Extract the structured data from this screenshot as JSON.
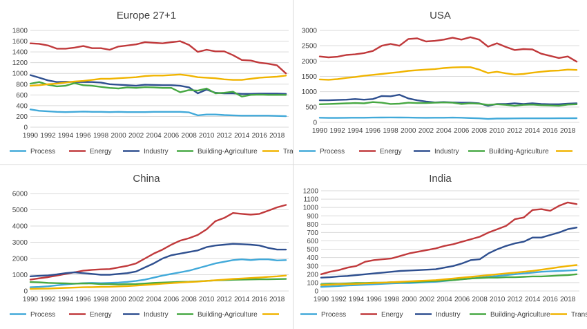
{
  "chart_data": [
    {
      "type": "line",
      "title": "Europe 27+1",
      "x": [
        1990,
        1991,
        1992,
        1993,
        1994,
        1995,
        1996,
        1997,
        1998,
        1999,
        2000,
        2001,
        2002,
        2003,
        2004,
        2005,
        2006,
        2007,
        2008,
        2009,
        2010,
        2011,
        2012,
        2013,
        2014,
        2015,
        2016,
        2017,
        2018,
        2019
      ],
      "xticks": [
        "1990",
        "1992",
        "1994",
        "1996",
        "1998",
        "2000",
        "2002",
        "2004",
        "2006",
        "2008",
        "2010",
        "2012",
        "2014",
        "2016",
        "2018"
      ],
      "ylim": [
        0,
        1800
      ],
      "yticks": [
        "0",
        "200",
        "400",
        "600",
        "800",
        "1000",
        "1200",
        "1400",
        "1600",
        "1800"
      ],
      "series": [
        {
          "name": "Process",
          "color": "#41a9d9",
          "values": [
            330,
            305,
            295,
            285,
            280,
            285,
            290,
            285,
            285,
            280,
            285,
            280,
            280,
            280,
            285,
            285,
            285,
            285,
            275,
            220,
            235,
            235,
            225,
            220,
            215,
            215,
            215,
            215,
            210,
            205
          ]
        },
        {
          "name": "Energy",
          "color": "#c0393b",
          "values": [
            1560,
            1550,
            1520,
            1460,
            1460,
            1480,
            1510,
            1470,
            1470,
            1440,
            1500,
            1520,
            1540,
            1580,
            1570,
            1560,
            1580,
            1600,
            1530,
            1400,
            1440,
            1410,
            1410,
            1340,
            1250,
            1240,
            1200,
            1180,
            1150,
            1000
          ]
        },
        {
          "name": "Industry",
          "color": "#2e4f8f",
          "values": [
            970,
            920,
            870,
            840,
            845,
            840,
            840,
            840,
            830,
            800,
            790,
            780,
            770,
            790,
            785,
            780,
            780,
            770,
            740,
            630,
            700,
            640,
            630,
            630,
            620,
            620,
            625,
            625,
            625,
            620
          ]
        },
        {
          "name": "Building-Agriculture",
          "color": "#47a843",
          "values": [
            810,
            840,
            790,
            760,
            770,
            820,
            780,
            770,
            750,
            730,
            720,
            740,
            730,
            745,
            740,
            730,
            730,
            650,
            690,
            680,
            720,
            630,
            640,
            660,
            570,
            600,
            605,
            600,
            600,
            600
          ]
        },
        {
          "name": "Transport",
          "color": "#f0b400",
          "values": [
            770,
            780,
            800,
            810,
            830,
            850,
            860,
            880,
            900,
            900,
            910,
            920,
            930,
            950,
            960,
            960,
            970,
            980,
            960,
            930,
            920,
            910,
            890,
            880,
            880,
            900,
            920,
            930,
            940,
            960
          ]
        }
      ],
      "legend": [
        "Process",
        "Energy",
        "Industry",
        "Building-Agriculture",
        "Transport"
      ]
    },
    {
      "type": "line",
      "title": "USA",
      "x": [
        1990,
        1991,
        1992,
        1993,
        1994,
        1995,
        1996,
        1997,
        1998,
        1999,
        2000,
        2001,
        2002,
        2003,
        2004,
        2005,
        2006,
        2007,
        2008,
        2009,
        2010,
        2011,
        2012,
        2013,
        2014,
        2015,
        2016,
        2017,
        2018,
        2019
      ],
      "xticks": [
        "1990",
        "1992",
        "1994",
        "1996",
        "1998",
        "2000",
        "2002",
        "2004",
        "2006",
        "2008",
        "2010",
        "2012",
        "2014",
        "2016",
        "2018"
      ],
      "ylim": [
        0,
        3000
      ],
      "yticks": [
        "0",
        "500",
        "1000",
        "1500",
        "2000",
        "2500",
        "3000"
      ],
      "series": [
        {
          "name": "Process",
          "color": "#41a9d9",
          "values": [
            150,
            145,
            145,
            148,
            150,
            152,
            155,
            158,
            160,
            158,
            155,
            150,
            148,
            150,
            152,
            155,
            150,
            140,
            130,
            110,
            125,
            125,
            128,
            130,
            130,
            130,
            130,
            132,
            133,
            135
          ]
        },
        {
          "name": "Energy",
          "color": "#c0393b",
          "values": [
            2150,
            2120,
            2140,
            2200,
            2220,
            2260,
            2330,
            2500,
            2560,
            2500,
            2720,
            2740,
            2640,
            2660,
            2700,
            2760,
            2700,
            2780,
            2700,
            2470,
            2580,
            2460,
            2360,
            2390,
            2380,
            2240,
            2170,
            2100,
            2150,
            1980
          ]
        },
        {
          "name": "Industry",
          "color": "#2e4f8f",
          "values": [
            720,
            720,
            730,
            740,
            760,
            740,
            760,
            860,
            850,
            900,
            780,
            720,
            680,
            650,
            660,
            650,
            640,
            640,
            620,
            540,
            600,
            600,
            620,
            600,
            620,
            600,
            590,
            590,
            610,
            620
          ]
        },
        {
          "name": "Building-Agriculture",
          "color": "#47a843",
          "values": [
            590,
            600,
            610,
            620,
            630,
            620,
            660,
            640,
            600,
            610,
            640,
            630,
            630,
            640,
            650,
            640,
            600,
            620,
            610,
            570,
            590,
            570,
            540,
            570,
            580,
            560,
            550,
            540,
            580,
            590
          ]
        },
        {
          "name": "",
          "color": "#f0b400",
          "values": [
            1400,
            1390,
            1410,
            1450,
            1480,
            1520,
            1550,
            1580,
            1610,
            1640,
            1680,
            1700,
            1720,
            1740,
            1770,
            1790,
            1800,
            1800,
            1720,
            1610,
            1650,
            1600,
            1560,
            1580,
            1620,
            1650,
            1680,
            1690,
            1720,
            1710
          ]
        }
      ],
      "legend": [
        "Process",
        "Energy",
        "Industry",
        "Building-Agriculture",
        ""
      ]
    },
    {
      "type": "line",
      "title": "China",
      "x": [
        1990,
        1991,
        1992,
        1993,
        1994,
        1995,
        1996,
        1997,
        1998,
        1999,
        2000,
        2001,
        2002,
        2003,
        2004,
        2005,
        2006,
        2007,
        2008,
        2009,
        2010,
        2011,
        2012,
        2013,
        2014,
        2015,
        2016,
        2017,
        2018,
        2019
      ],
      "xticks": [
        "1990",
        "1992",
        "1994",
        "1996",
        "1998",
        "2000",
        "2002",
        "2004",
        "2006",
        "2008",
        "2010",
        "2012",
        "2014",
        "2016",
        "2018"
      ],
      "ylim": [
        0,
        6000
      ],
      "yticks": [
        "0",
        "1000",
        "2000",
        "3000",
        "4000",
        "5000",
        "6000"
      ],
      "series": [
        {
          "name": "Process",
          "color": "#41a9d9",
          "values": [
            230,
            250,
            290,
            350,
            400,
            450,
            480,
            500,
            480,
            500,
            520,
            560,
            620,
            700,
            820,
            950,
            1050,
            1150,
            1250,
            1400,
            1550,
            1700,
            1800,
            1900,
            1950,
            1900,
            1950,
            1950,
            1880,
            1900
          ]
        },
        {
          "name": "Energy",
          "color": "#c0393b",
          "values": [
            700,
            780,
            850,
            950,
            1050,
            1150,
            1250,
            1300,
            1330,
            1350,
            1450,
            1550,
            1700,
            2000,
            2300,
            2550,
            2850,
            3100,
            3250,
            3450,
            3800,
            4300,
            4500,
            4800,
            4750,
            4700,
            4750,
            4950,
            5150,
            5300
          ]
        },
        {
          "name": "Industry",
          "color": "#2e4f8f",
          "values": [
            900,
            930,
            960,
            1020,
            1100,
            1150,
            1100,
            1050,
            1000,
            1000,
            1050,
            1100,
            1200,
            1450,
            1700,
            2000,
            2200,
            2300,
            2400,
            2500,
            2700,
            2800,
            2850,
            2900,
            2880,
            2850,
            2800,
            2650,
            2550,
            2550
          ]
        },
        {
          "name": "Building-Agriculture",
          "color": "#47a843",
          "values": [
            550,
            530,
            500,
            480,
            470,
            450,
            470,
            460,
            420,
            420,
            410,
            420,
            430,
            460,
            500,
            520,
            540,
            560,
            570,
            590,
            620,
            650,
            670,
            690,
            700,
            710,
            720,
            720,
            730,
            740
          ]
        },
        {
          "name": "",
          "color": "#f0b400",
          "values": [
            130,
            140,
            150,
            170,
            190,
            210,
            230,
            240,
            250,
            260,
            280,
            300,
            330,
            370,
            410,
            450,
            480,
            520,
            550,
            580,
            620,
            660,
            700,
            740,
            770,
            800,
            830,
            870,
            900,
            950
          ]
        }
      ],
      "legend": [
        "Process",
        "Energy",
        "Industry",
        "Building-Agriculture",
        ""
      ]
    },
    {
      "type": "line",
      "title": "India",
      "x": [
        1990,
        1991,
        1992,
        1993,
        1994,
        1995,
        1996,
        1997,
        1998,
        1999,
        2000,
        2001,
        2002,
        2003,
        2004,
        2005,
        2006,
        2007,
        2008,
        2009,
        2010,
        2011,
        2012,
        2013,
        2014,
        2015,
        2016,
        2017,
        2018,
        2019
      ],
      "xticks": [
        "1990",
        "1992",
        "1994",
        "1996",
        "1998",
        "2000",
        "2002",
        "2004",
        "2006",
        "2008",
        "2010",
        "2012",
        "2014",
        "2016",
        "2018"
      ],
      "ylim": [
        0,
        1200
      ],
      "yticks": [
        "0",
        "100",
        "200",
        "300",
        "400",
        "500",
        "600",
        "700",
        "800",
        "900",
        "1000",
        "1100",
        "1200"
      ],
      "series": [
        {
          "name": "Process",
          "color": "#41a9d9",
          "values": [
            50,
            55,
            60,
            65,
            70,
            75,
            80,
            85,
            90,
            95,
            95,
            100,
            105,
            110,
            120,
            130,
            140,
            150,
            160,
            170,
            180,
            190,
            200,
            210,
            220,
            230,
            235,
            240,
            245,
            250
          ]
        },
        {
          "name": "Energy",
          "color": "#c0393b",
          "values": [
            200,
            230,
            250,
            280,
            300,
            350,
            370,
            380,
            390,
            420,
            450,
            470,
            490,
            510,
            540,
            560,
            590,
            620,
            650,
            700,
            740,
            780,
            860,
            880,
            970,
            980,
            960,
            1020,
            1060,
            1040
          ]
        },
        {
          "name": "Industry",
          "color": "#2e4f8f",
          "values": [
            160,
            165,
            175,
            180,
            190,
            200,
            210,
            220,
            230,
            240,
            245,
            250,
            255,
            260,
            280,
            300,
            330,
            370,
            380,
            450,
            500,
            540,
            570,
            590,
            640,
            640,
            670,
            700,
            740,
            760
          ]
        },
        {
          "name": "Building-Agriculture",
          "color": "#47a843",
          "values": [
            80,
            85,
            85,
            90,
            95,
            95,
            100,
            100,
            105,
            105,
            110,
            110,
            115,
            120,
            125,
            130,
            140,
            150,
            155,
            160,
            160,
            165,
            165,
            170,
            175,
            175,
            180,
            185,
            190,
            200
          ]
        },
        {
          "name": "Transport",
          "color": "#f0b400",
          "values": [
            70,
            75,
            80,
            82,
            85,
            90,
            95,
            100,
            105,
            110,
            115,
            120,
            125,
            130,
            140,
            150,
            160,
            170,
            180,
            190,
            200,
            210,
            220,
            230,
            240,
            255,
            270,
            285,
            300,
            310
          ]
        }
      ],
      "legend": [
        "Process",
        "Energy",
        "Industry",
        "Building-Agriculture",
        "Transport"
      ]
    }
  ]
}
